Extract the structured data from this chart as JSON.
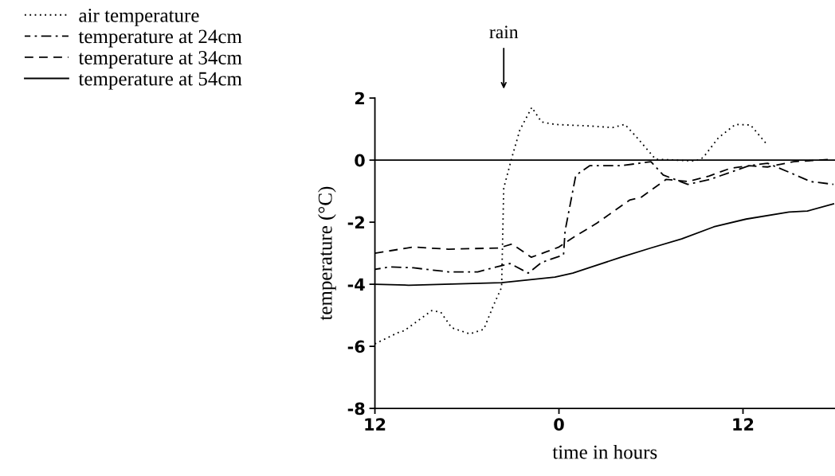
{
  "chart_data": {
    "type": "line",
    "xlabel": "time in hours",
    "ylabel": "temperature (°C)",
    "xlim": [
      -12,
      18
    ],
    "xticks": [
      {
        "value": -12,
        "label": "12"
      },
      0,
      12
    ],
    "ylim": [
      -8,
      2
    ],
    "yticks": [
      -8,
      -6,
      -4,
      -2,
      0,
      2
    ],
    "grid": false,
    "legend": "top left",
    "ref_lines": [
      {
        "axis": "y",
        "value": 0,
        "color": "#000000",
        "line_style": "solid"
      }
    ],
    "annotations": [
      "rain"
    ],
    "series": [
      {
        "name": "air temperature",
        "color": "#000000",
        "line_style": "dotted",
        "x": [
          -12,
          -10.5,
          -10.1,
          -8.3,
          -7.7,
          -7.0,
          -5.8,
          -4.9,
          -4.26,
          -3.74,
          -3.6,
          -3.1,
          -2.55,
          -1.77,
          -1.14,
          -0.26,
          2.0,
          3.5,
          4.3,
          5.1,
          6.3,
          8.9,
          9.4,
          10.4,
          11.5,
          12.5,
          13.5
        ],
        "values": [
          -5.92,
          -5.56,
          -5.5,
          -4.85,
          -4.9,
          -5.4,
          -5.6,
          -5.45,
          -4.67,
          -4.1,
          -0.9,
          0.03,
          0.97,
          1.7,
          1.23,
          1.15,
          1.1,
          1.05,
          1.15,
          0.72,
          0.03,
          -0.03,
          0.08,
          0.72,
          1.15,
          1.13,
          0.54
        ]
      },
      {
        "name": "temperature at 24cm",
        "color": "#000000",
        "line_style": "dashdot",
        "x": [
          -12,
          -11.0,
          -9.5,
          -7.2,
          -5.3,
          -3.2,
          -2.0,
          -1.14,
          0.3,
          0.4,
          1.1,
          2.0,
          4.05,
          6.0,
          6.8,
          8.4,
          9.8,
          12.4,
          13.6,
          15.0,
          16.4,
          17.9
        ],
        "values": [
          -3.52,
          -3.44,
          -3.47,
          -3.6,
          -3.6,
          -3.33,
          -3.64,
          -3.3,
          -3.05,
          -2.28,
          -0.49,
          -0.18,
          -0.18,
          -0.05,
          -0.48,
          -0.78,
          -0.63,
          -0.18,
          -0.1,
          -0.39,
          -0.69,
          -0.78
        ]
      },
      {
        "name": "temperature at 34cm",
        "color": "#000000",
        "line_style": "dashed",
        "x": [
          -12,
          -9.5,
          -7.2,
          -3.9,
          -3.06,
          -1.8,
          -0.8,
          0.0,
          0.78,
          2.5,
          4.6,
          5.35,
          7.0,
          8.4,
          9.8,
          11.2,
          12.4,
          13.6,
          15.3,
          17.9
        ],
        "values": [
          -3.0,
          -2.8,
          -2.87,
          -2.83,
          -2.7,
          -3.13,
          -2.95,
          -2.8,
          -2.54,
          -2.02,
          -1.29,
          -1.2,
          -0.62,
          -0.69,
          -0.51,
          -0.26,
          -0.18,
          -0.22,
          -0.05,
          0.03
        ]
      },
      {
        "name": "temperature at 54cm",
        "color": "#000000",
        "line_style": "solid",
        "x": [
          -12,
          -9.8,
          -3.74,
          -0.26,
          0.9,
          2.0,
          4.05,
          6.0,
          8.0,
          10.1,
          12.2,
          15.0,
          16.2,
          17.9
        ],
        "values": [
          -4.0,
          -4.03,
          -3.95,
          -3.77,
          -3.64,
          -3.46,
          -3.13,
          -2.83,
          -2.54,
          -2.15,
          -1.9,
          -1.67,
          -1.64,
          -1.41
        ]
      }
    ]
  }
}
